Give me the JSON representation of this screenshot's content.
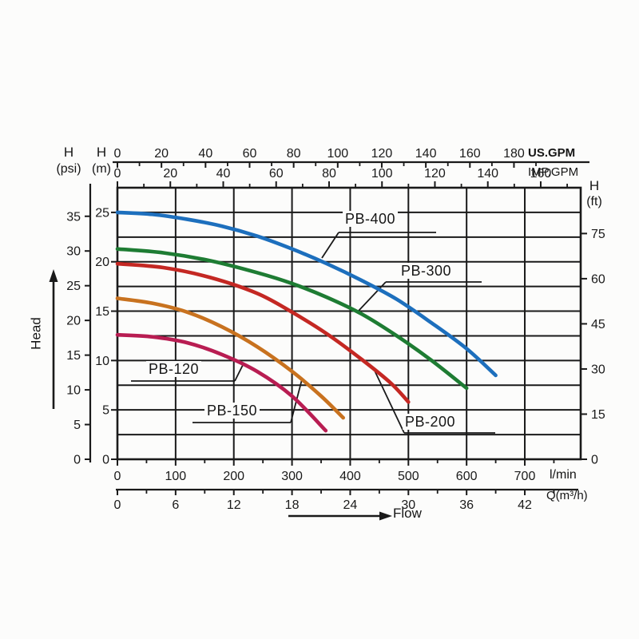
{
  "page": {
    "background": "#fcfcfb"
  },
  "chart_data": {
    "type": "line",
    "title": "",
    "axes": {
      "top_us_gpm": {
        "label": "US.GPM",
        "ticks": [
          0,
          20,
          40,
          60,
          80,
          100,
          120,
          140,
          160,
          180
        ],
        "minor_step": 10
      },
      "top_imp_gpm": {
        "label": "IMP.GPM",
        "ticks": [
          0,
          20,
          40,
          60,
          80,
          100,
          120,
          140,
          160
        ],
        "minor_step": 10
      },
      "left_psi": {
        "title": "H",
        "subtitle": "(psi)",
        "ticks": [
          0,
          5,
          10,
          15,
          20,
          25,
          30,
          35
        ]
      },
      "left_m": {
        "title": "H",
        "subtitle": "(m)",
        "ticks": [
          0,
          5,
          10,
          15,
          20,
          25
        ]
      },
      "right_ft": {
        "title": "H",
        "subtitle": "(ft)",
        "ticks": [
          0,
          15,
          30,
          45,
          60,
          75
        ]
      },
      "bottom_lmin": {
        "label": "l/min",
        "ticks": [
          0,
          100,
          200,
          300,
          400,
          500,
          600,
          700
        ],
        "minor_step": 50
      },
      "bottom_m3h": {
        "label": "Q(m³/h)",
        "ticks": [
          0,
          6,
          12,
          18,
          24,
          30,
          36,
          42
        ],
        "minor_step": 3
      }
    },
    "grid": {
      "x_range_lmin": [
        0,
        796
      ],
      "x_step_lmin": 100,
      "y_range_m": [
        0,
        27.5
      ],
      "y_step_m": 2.5
    },
    "series": [
      {
        "name": "PB-400",
        "color": "#1d6fbd",
        "points_lmin_m": [
          [
            0,
            25
          ],
          [
            60,
            24.8
          ],
          [
            120,
            24.3
          ],
          [
            180,
            23.6
          ],
          [
            240,
            22.6
          ],
          [
            300,
            21.3
          ],
          [
            360,
            19.8
          ],
          [
            420,
            18.1
          ],
          [
            480,
            16.2
          ],
          [
            540,
            13.8
          ],
          [
            600,
            11.2
          ],
          [
            650,
            8.5
          ]
        ]
      },
      {
        "name": "PB-300",
        "color": "#1e7c33",
        "points_lmin_m": [
          [
            0,
            21.3
          ],
          [
            80,
            20.9
          ],
          [
            160,
            20.1
          ],
          [
            240,
            18.9
          ],
          [
            300,
            17.8
          ],
          [
            360,
            16.4
          ],
          [
            420,
            14.7
          ],
          [
            480,
            12.5
          ],
          [
            540,
            10.0
          ],
          [
            600,
            7.2
          ]
        ]
      },
      {
        "name": "PB-200",
        "color": "#c42823",
        "points_lmin_m": [
          [
            0,
            19.8
          ],
          [
            80,
            19.4
          ],
          [
            160,
            18.4
          ],
          [
            240,
            16.8
          ],
          [
            300,
            14.9
          ],
          [
            360,
            12.7
          ],
          [
            420,
            10.1
          ],
          [
            470,
            7.7
          ],
          [
            500,
            5.8
          ]
        ]
      },
      {
        "name": "PB-150",
        "color": "#c8721f",
        "points_lmin_m": [
          [
            0,
            16.3
          ],
          [
            60,
            15.8
          ],
          [
            120,
            14.9
          ],
          [
            180,
            13.4
          ],
          [
            240,
            11.4
          ],
          [
            300,
            8.9
          ],
          [
            350,
            6.4
          ],
          [
            388,
            4.2
          ]
        ]
      },
      {
        "name": "PB-120",
        "color": "#b81d52",
        "points_lmin_m": [
          [
            0,
            12.6
          ],
          [
            60,
            12.4
          ],
          [
            120,
            11.8
          ],
          [
            180,
            10.6
          ],
          [
            240,
            8.9
          ],
          [
            300,
            6.4
          ],
          [
            358,
            2.9
          ]
        ]
      }
    ],
    "annotations": {
      "head_axis": "Head",
      "flow_axis": "Flow"
    },
    "ink_color": "#1a1a1a"
  }
}
